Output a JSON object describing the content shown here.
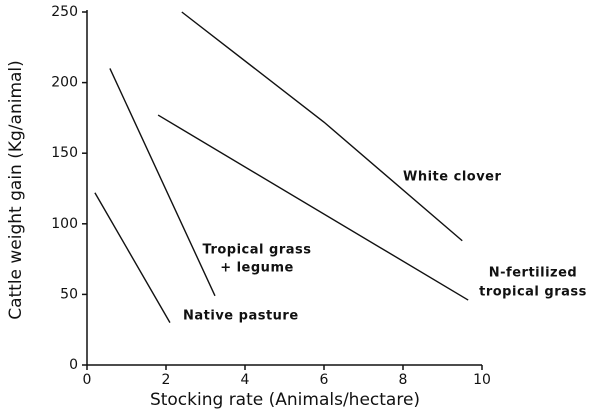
{
  "chart_data": {
    "type": "line",
    "x_label": "Stocking rate (Animals/hectare)",
    "y_label": "Cattle weight gain (Kg/animal)",
    "xlim": [
      0,
      10
    ],
    "xticks": [
      0,
      2,
      4,
      6,
      8,
      10
    ],
    "ylim": [
      0,
      250
    ],
    "yticks": [
      0,
      50,
      100,
      150,
      200,
      250
    ],
    "color": "#111111",
    "series": [
      {
        "name": [
          "White clover"
        ],
        "x": [
          2.4,
          6,
          9.5
        ],
        "values": [
          250,
          172,
          88
        ]
      },
      {
        "name": [
          "N-fertilized",
          "tropical grass"
        ],
        "x": [
          1.8,
          9.65
        ],
        "values": [
          177,
          46
        ]
      },
      {
        "name": [
          "Tropical grass",
          "+ legume"
        ],
        "x": [
          0.58,
          3.24
        ],
        "values": [
          210,
          49
        ]
      },
      {
        "name": [
          "Native pasture"
        ],
        "x": [
          0.2,
          2.1
        ],
        "values": [
          122,
          30
        ]
      }
    ]
  }
}
